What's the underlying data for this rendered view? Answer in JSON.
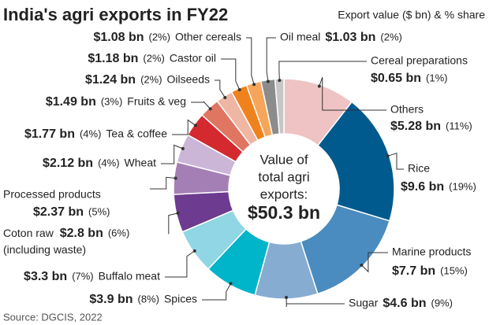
{
  "chart_data": {
    "type": "donut",
    "title": "India's agri exports in FY22",
    "subtitle": "Export value ($ bn) & % share",
    "source": "Source: DGCIS, 2022",
    "center_label": [
      "Value of",
      "total agri",
      "exports:"
    ],
    "total_label": "$50.3 bn",
    "categories": [
      "Others",
      "Rice",
      "Marine products",
      "Sugar",
      "Spices",
      "Buffalo meat",
      "Coton raw (including waste)",
      "Processed products",
      "Wheat",
      "Tea & coffee",
      "Fruits & veg",
      "Oilseeds",
      "Castor oil",
      "Other cereals",
      "Oil meal",
      "Cereal preparations"
    ],
    "values": [
      5.28,
      9.6,
      7.7,
      4.6,
      3.9,
      3.3,
      2.8,
      2.37,
      2.12,
      1.77,
      1.49,
      1.24,
      1.18,
      1.08,
      1.03,
      0.65
    ],
    "value_labels": [
      "$5.28 bn",
      "$9.6 bn",
      "$7.7 bn",
      "$4.6 bn",
      "$3.9 bn",
      "$3.3 bn",
      "$2.8 bn",
      "$2.37 bn",
      "$2.12 bn",
      "$1.77 bn",
      "$1.49 bn",
      "$1.24 bn",
      "$1.18 bn",
      "$1.08 bn",
      "$1.03 bn",
      "$0.65 bn"
    ],
    "shares": [
      11,
      19,
      15,
      9,
      8,
      7,
      6,
      5,
      4,
      4,
      3,
      2,
      2,
      2,
      2,
      1
    ],
    "share_labels": [
      "(11%)",
      "(19%)",
      "(15%)",
      "(9%)",
      "(8%)",
      "(7%)",
      "(6%)",
      "(5%)",
      "(4%)",
      "(4%)",
      "(3%)",
      "(2%)",
      "(2%)",
      "(2%)",
      "(2%)",
      "(1%)"
    ],
    "colors": [
      "#efc3c3",
      "#005a8d",
      "#4a8cbf",
      "#86acd2",
      "#00b4c9",
      "#90d6e4",
      "#6d3b8f",
      "#a47fb5",
      "#cbb6d8",
      "#d42a2f",
      "#e07562",
      "#efb6a4",
      "#f0821e",
      "#f6a55a",
      "#8c8c8c",
      "#c6c6c6"
    ]
  }
}
